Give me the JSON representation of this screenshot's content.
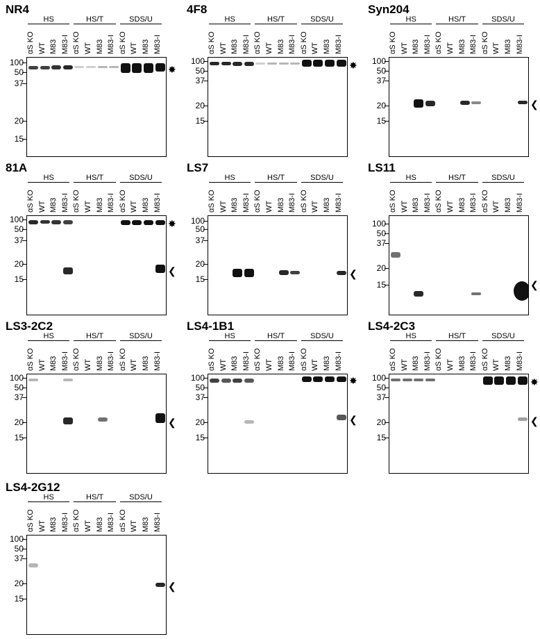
{
  "groups": [
    "HS",
    "HS/T",
    "SDS/U"
  ],
  "lanes": [
    "αS KO",
    "WT",
    "M83",
    "M83-I"
  ],
  "mw_markers": [
    "100",
    "50",
    "37",
    "20",
    "15"
  ],
  "symbols": {
    "asterisk": "✸",
    "arrowhead": "❮"
  },
  "panels": [
    {
      "title": "NR4",
      "marker_type": "asterisk"
    },
    {
      "title": "4F8",
      "marker_type": "asterisk"
    },
    {
      "title": "Syn204",
      "marker_type": "arrowhead"
    },
    {
      "title": "81A",
      "marker_type": "both"
    },
    {
      "title": "LS7",
      "marker_type": "arrowhead"
    },
    {
      "title": "LS11",
      "marker_type": "arrowhead"
    },
    {
      "title": "LS3-2C2",
      "marker_type": "arrowhead"
    },
    {
      "title": "LS4-1B1",
      "marker_type": "both"
    },
    {
      "title": "LS4-2C3",
      "marker_type": "both"
    },
    {
      "title": "LS4-2G12",
      "marker_type": "arrowhead"
    }
  ]
}
